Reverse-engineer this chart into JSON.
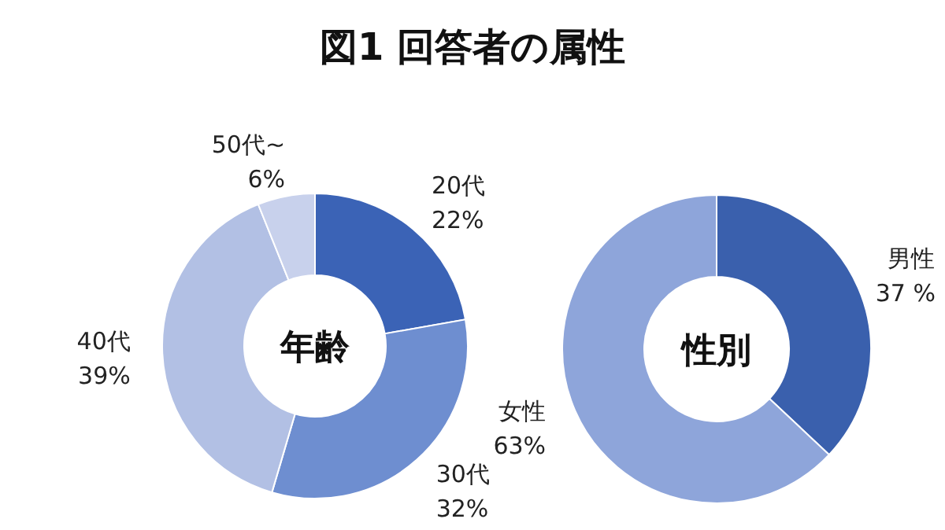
{
  "chart_data": [
    {
      "type": "donut",
      "title": "年齢",
      "annotations": [
        "図1 回答者の属性"
      ],
      "categories": [
        "20代",
        "30代",
        "40代",
        "50代~"
      ],
      "values": [
        22,
        32,
        39,
        6
      ],
      "value_labels": [
        "22%",
        "32%",
        "39%",
        "6%"
      ],
      "colors": [
        "#3b63b6",
        "#6e8ed0",
        "#b2c0e4",
        "#c8d1ec"
      ]
    },
    {
      "type": "donut",
      "title": "性別",
      "categories": [
        "男性",
        "女性"
      ],
      "values": [
        37,
        63
      ],
      "value_labels": [
        "37 %",
        "63%"
      ],
      "colors": [
        "#3a60ad",
        "#8ea5da"
      ]
    }
  ]
}
